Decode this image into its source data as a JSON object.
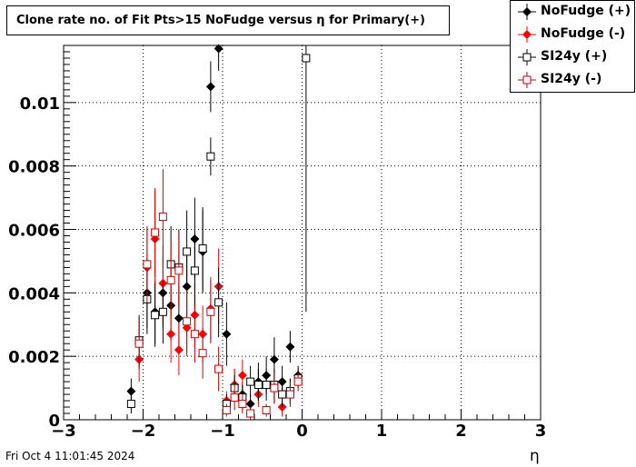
{
  "chart_data": {
    "type": "scatter",
    "title": "Clone rate no. of Fit Pts>15 NoFudge versus η for Primary(+)",
    "xlabel": "η",
    "ylabel": "",
    "xlim": [
      -3,
      3
    ],
    "ylim": [
      0,
      0.0118
    ],
    "grid": true,
    "legend_position": "top-right",
    "x_ticks": [
      "−3",
      "−2",
      "−1",
      "0",
      "1",
      "2",
      "3"
    ],
    "y_ticks": [
      "0",
      "0.002",
      "0.004",
      "0.006",
      "0.008",
      "0.01"
    ],
    "series": [
      {
        "name": "NoFudge (+)",
        "marker": "filled-diamond",
        "color": "#000000",
        "points": [
          {
            "x": -2.15,
            "y": 0.0009,
            "err": 0.0004
          },
          {
            "x": -2.05,
            "y": 0.0024,
            "err": 0.0008
          },
          {
            "x": -1.95,
            "y": 0.004,
            "err": 0.0011
          },
          {
            "x": -1.85,
            "y": 0.0034,
            "err": 0.001
          },
          {
            "x": -1.75,
            "y": 0.004,
            "err": 0.0011
          },
          {
            "x": -1.65,
            "y": 0.0036,
            "err": 0.0011
          },
          {
            "x": -1.55,
            "y": 0.0032,
            "err": 0.001
          },
          {
            "x": -1.45,
            "y": 0.0042,
            "err": 0.0012
          },
          {
            "x": -1.35,
            "y": 0.0057,
            "err": 0.0013
          },
          {
            "x": -1.25,
            "y": 0.0053,
            "err": 0.0013
          },
          {
            "x": -1.15,
            "y": 0.0105,
            "err": 0.0008
          },
          {
            "x": -1.05,
            "y": 0.0117,
            "err": 0.0007
          },
          {
            "x": -0.95,
            "y": 0.0027,
            "err": 0.001
          },
          {
            "x": -0.85,
            "y": 0.0011,
            "err": 0.0005
          },
          {
            "x": -0.75,
            "y": 0.0008,
            "err": 0.0004
          },
          {
            "x": -0.65,
            "y": 0.0005,
            "err": 0.0003
          },
          {
            "x": -0.55,
            "y": 0.0012,
            "err": 0.0006
          },
          {
            "x": -0.45,
            "y": 0.0014,
            "err": 0.0006
          },
          {
            "x": -0.35,
            "y": 0.0019,
            "err": 0.0007
          },
          {
            "x": -0.25,
            "y": 0.0012,
            "err": 0.0005
          },
          {
            "x": -0.15,
            "y": 0.0023,
            "err": 0.0005
          },
          {
            "x": -0.05,
            "y": 0.0014,
            "err": 0.0003
          }
        ]
      },
      {
        "name": "NoFudge (-)",
        "marker": "filled-diamond",
        "color": "#ff0000",
        "points": [
          {
            "x": -2.05,
            "y": 0.0019,
            "err": 0.0007
          },
          {
            "x": -1.95,
            "y": 0.0048,
            "err": 0.0012
          },
          {
            "x": -1.85,
            "y": 0.0057,
            "err": 0.0015
          },
          {
            "x": -1.75,
            "y": 0.0043,
            "err": 0.0012
          },
          {
            "x": -1.65,
            "y": 0.0027,
            "err": 0.0009
          },
          {
            "x": -1.55,
            "y": 0.0022,
            "err": 0.0008
          },
          {
            "x": -1.45,
            "y": 0.0029,
            "err": 0.0009
          },
          {
            "x": -1.35,
            "y": 0.0033,
            "err": 0.001
          },
          {
            "x": -1.25,
            "y": 0.0027,
            "err": 0.0009
          },
          {
            "x": -1.15,
            "y": 0.0035,
            "err": 0.001
          },
          {
            "x": -1.05,
            "y": 0.0042,
            "err": 0.0012
          },
          {
            "x": -0.95,
            "y": 0.0006,
            "err": 0.0003
          },
          {
            "x": -0.85,
            "y": 0.0011,
            "err": 0.0005
          },
          {
            "x": -0.75,
            "y": 0.0014,
            "err": 0.0005
          },
          {
            "x": -0.65,
            "y": 0.0002,
            "err": 0.0002
          },
          {
            "x": -0.55,
            "y": 0.0008,
            "err": 0.0004
          },
          {
            "x": -0.35,
            "y": 0.001,
            "err": 0.0005
          },
          {
            "x": -0.25,
            "y": 0.0004,
            "err": 0.0003
          },
          {
            "x": -0.15,
            "y": 0.0009,
            "err": 0.0004
          }
        ]
      },
      {
        "name": "SI24y (+)",
        "marker": "open-square",
        "color": "#000000",
        "points": [
          {
            "x": -2.15,
            "y": 0.0005,
            "err": 0.0003
          },
          {
            "x": -2.05,
            "y": 0.0025,
            "err": 0.0008
          },
          {
            "x": -1.95,
            "y": 0.0038,
            "err": 0.0011
          },
          {
            "x": -1.85,
            "y": 0.0033,
            "err": 0.001
          },
          {
            "x": -1.75,
            "y": 0.0034,
            "err": 0.001
          },
          {
            "x": -1.65,
            "y": 0.0049,
            "err": 0.0012
          },
          {
            "x": -1.55,
            "y": 0.0048,
            "err": 0.0012
          },
          {
            "x": -1.45,
            "y": 0.0053,
            "err": 0.0013
          },
          {
            "x": -1.35,
            "y": 0.0047,
            "err": 0.0012
          },
          {
            "x": -1.25,
            "y": 0.0054,
            "err": 0.0013
          },
          {
            "x": -1.15,
            "y": 0.0083,
            "err": 0.0006
          },
          {
            "x": -1.05,
            "y": 0.0037,
            "err": 0.0011
          },
          {
            "x": -0.95,
            "y": 0.0005,
            "err": 0.0003
          },
          {
            "x": -0.85,
            "y": 0.001,
            "err": 0.0004
          },
          {
            "x": -0.75,
            "y": 0.0007,
            "err": 0.0004
          },
          {
            "x": -0.65,
            "y": 0.0012,
            "err": 0.0005
          },
          {
            "x": -0.55,
            "y": 0.0011,
            "err": 0.0005
          },
          {
            "x": -0.45,
            "y": 0.0011,
            "err": 0.0005
          },
          {
            "x": -0.35,
            "y": 0.0011,
            "err": 0.0005
          },
          {
            "x": -0.25,
            "y": 0.0008,
            "err": 0.0004
          },
          {
            "x": -0.15,
            "y": 0.0009,
            "err": 0.0004
          },
          {
            "x": -0.05,
            "y": 0.0013,
            "err": 0.0003
          },
          {
            "x": 0.05,
            "y": 0.0114,
            "err": 0.008
          }
        ]
      },
      {
        "name": "SI24y (-)",
        "marker": "open-square",
        "color": "#cc0000",
        "points": [
          {
            "x": -2.05,
            "y": 0.0024,
            "err": 0.0008
          },
          {
            "x": -1.95,
            "y": 0.0049,
            "err": 0.0012
          },
          {
            "x": -1.85,
            "y": 0.0059,
            "err": 0.0014
          },
          {
            "x": -1.75,
            "y": 0.0064,
            "err": 0.0015
          },
          {
            "x": -1.65,
            "y": 0.0044,
            "err": 0.0012
          },
          {
            "x": -1.55,
            "y": 0.0047,
            "err": 0.0012
          },
          {
            "x": -1.45,
            "y": 0.0031,
            "err": 0.001
          },
          {
            "x": -1.35,
            "y": 0.0027,
            "err": 0.0009
          },
          {
            "x": -1.25,
            "y": 0.0021,
            "err": 0.0008
          },
          {
            "x": -1.15,
            "y": 0.0034,
            "err": 0.001
          },
          {
            "x": -1.05,
            "y": 0.0016,
            "err": 0.0007
          },
          {
            "x": -0.95,
            "y": 0.0003,
            "err": 0.0002
          },
          {
            "x": -0.85,
            "y": 0.0007,
            "err": 0.0004
          },
          {
            "x": -0.75,
            "y": 0.0005,
            "err": 0.0003
          },
          {
            "x": -0.65,
            "y": 0.0002,
            "err": 0.0002
          },
          {
            "x": -0.45,
            "y": 0.0003,
            "err": 0.0002
          },
          {
            "x": -0.35,
            "y": 0.001,
            "err": 0.0005
          },
          {
            "x": -0.15,
            "y": 0.0008,
            "err": 0.0004
          },
          {
            "x": -0.05,
            "y": 0.0012,
            "err": 0.0003
          }
        ]
      }
    ]
  },
  "footer": {
    "timestamp": "Fri Oct  4 11:01:45 2024"
  }
}
